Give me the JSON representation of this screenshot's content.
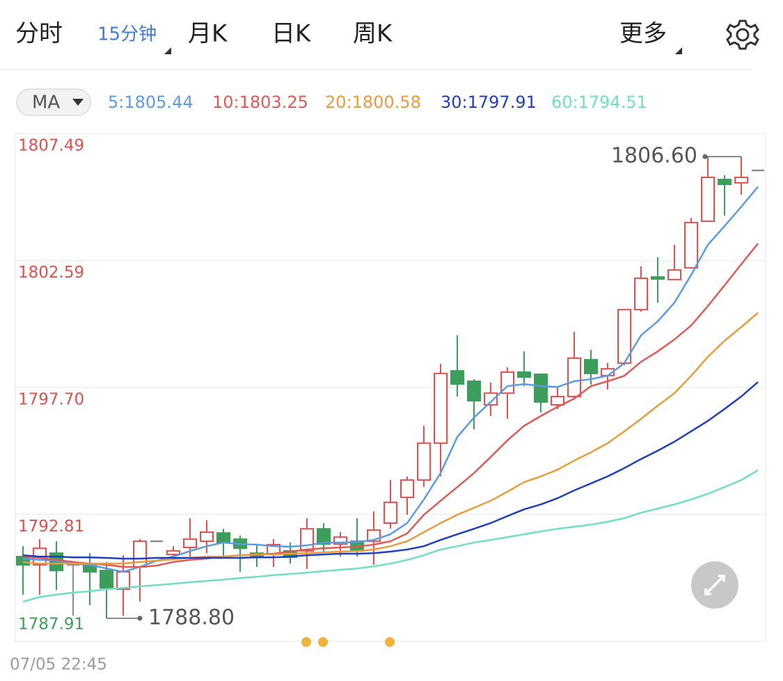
{
  "tabs": [
    "分时",
    "15分钟",
    "月K",
    "日K",
    "周K",
    "更多"
  ],
  "active_tab": 1,
  "indicator": "MA",
  "chart_data": {
    "type": "candlestick",
    "ylim": [
      1787.91,
      1807.49
    ],
    "yticks": [
      1807.49,
      1802.59,
      {
        "value": 1797.7,
        "label": "1797.70"
      },
      1792.81,
      1787.91
    ],
    "ytick_colors": [
      "#d9534f",
      "#d9534f",
      "#d9534f",
      "#d9534f",
      "#3d9e5c"
    ],
    "grid": true,
    "x_start_label": "07/05 22:45",
    "up_color": "#e0514f",
    "down_color": "#3d9e5c",
    "flat_color": "#8a8f99",
    "candles": {
      "open": [
        1791.18,
        1790.86,
        1791.31,
        1790.86,
        1790.83,
        1790.64,
        1789.92,
        1790.78,
        1791.77,
        1791.26,
        1791.53,
        1791.77,
        1792.09,
        1791.85,
        1791.31,
        1791.26,
        1791.4,
        1791.4,
        1792.25,
        1791.66,
        1791.77,
        1791.77,
        1792.47,
        1793.46,
        1794.13,
        1795.55,
        1798.34,
        1797.94,
        1797.03,
        1797.48,
        1798.29,
        1798.21,
        1797.03,
        1797.35,
        1798.77,
        1798.16,
        1798.64,
        1800.7,
        1801.96,
        1801.86,
        1802.31,
        1804.11,
        1805.72,
        1805.59,
        1806.07
      ],
      "high": [
        1791.58,
        1791.85,
        1791.77,
        1790.86,
        1791.31,
        1790.97,
        1791.23,
        1791.85,
        1791.77,
        1791.58,
        1792.66,
        1792.58,
        1792.25,
        1791.99,
        1791.66,
        1791.85,
        1791.72,
        1792.66,
        1792.47,
        1792.12,
        1792.66,
        1792.92,
        1794.13,
        1794.27,
        1796.22,
        1798.61,
        1799.71,
        1798.02,
        1797.89,
        1798.48,
        1799.09,
        1798.21,
        1797.75,
        1799.85,
        1799.15,
        1798.64,
        1800.7,
        1802.37,
        1802.72,
        1803.2,
        1804.24,
        1806.6,
        1805.88,
        1806.6,
        1806.07
      ],
      "low": [
        1789.71,
        1789.71,
        1789.89,
        1788.9,
        1789.3,
        1788.8,
        1788.9,
        1789.44,
        1791.77,
        1791.05,
        1791.18,
        1791.31,
        1791.13,
        1790.59,
        1790.78,
        1790.78,
        1790.91,
        1790.7,
        1791.31,
        1791.18,
        1791.18,
        1790.86,
        1792.25,
        1792.79,
        1793.86,
        1794.27,
        1797.35,
        1796.09,
        1796.6,
        1796.49,
        1797.75,
        1796.73,
        1796.87,
        1797.3,
        1797.81,
        1797.62,
        1798.56,
        1800.62,
        1800.97,
        1801.86,
        1802.31,
        1804.11,
        1804.33,
        1805.13,
        1806.07
      ],
      "close": [
        1790.86,
        1791.5,
        1790.64,
        1790.86,
        1790.59,
        1789.97,
        1790.59,
        1791.77,
        1791.77,
        1791.4,
        1791.85,
        1792.12,
        1791.72,
        1791.5,
        1791.18,
        1791.64,
        1791.15,
        1792.25,
        1791.66,
        1791.93,
        1791.4,
        1792.2,
        1793.27,
        1794.13,
        1795.55,
        1798.24,
        1797.83,
        1797.19,
        1797.48,
        1798.29,
        1798.1,
        1797.14,
        1797.35,
        1798.83,
        1798.24,
        1798.42,
        1800.7,
        1801.91,
        1801.88,
        1802.23,
        1804.06,
        1805.8,
        1805.53,
        1805.8,
        1806.07
      ]
    },
    "series": [
      {
        "name": "5:1805.44",
        "color": "#5b9be6",
        "values": [
          1791.1,
          1791.05,
          1791.02,
          1790.91,
          1790.86,
          1790.72,
          1790.59,
          1790.78,
          1791.02,
          1791.18,
          1791.39,
          1791.58,
          1791.72,
          1791.66,
          1791.64,
          1791.58,
          1791.56,
          1791.61,
          1791.72,
          1791.72,
          1791.74,
          1791.82,
          1792.04,
          1792.47,
          1793.38,
          1794.4,
          1795.79,
          1796.54,
          1797.14,
          1797.75,
          1797.83,
          1797.75,
          1797.72,
          1797.94,
          1798.02,
          1798.15,
          1798.64,
          1799.71,
          1800.25,
          1800.97,
          1802.04,
          1803.2,
          1803.92,
          1804.67,
          1805.44
        ]
      },
      {
        "name": "10:1803.25",
        "color": "#e05a55",
        "values": [
          1791.18,
          1791.13,
          1791.05,
          1790.97,
          1790.91,
          1790.86,
          1790.78,
          1790.78,
          1790.83,
          1790.97,
          1791.05,
          1791.1,
          1791.18,
          1791.23,
          1791.26,
          1791.29,
          1791.37,
          1791.45,
          1791.5,
          1791.53,
          1791.56,
          1791.64,
          1791.77,
          1792.07,
          1792.79,
          1793.33,
          1793.86,
          1794.4,
          1795.02,
          1795.66,
          1796.22,
          1796.6,
          1796.95,
          1797.27,
          1797.75,
          1797.94,
          1798.15,
          1798.69,
          1799.09,
          1799.55,
          1800.09,
          1800.84,
          1801.64,
          1802.45,
          1803.25
        ]
      },
      {
        "name": "20:1800.58",
        "color": "#eb9a3c",
        "values": [
          1790.97,
          1790.91,
          1790.91,
          1790.91,
          1790.91,
          1790.91,
          1790.91,
          1790.97,
          1791.02,
          1791.07,
          1791.13,
          1791.18,
          1791.18,
          1791.23,
          1791.26,
          1791.26,
          1791.29,
          1791.31,
          1791.34,
          1791.37,
          1791.39,
          1791.45,
          1791.58,
          1791.77,
          1792.12,
          1792.47,
          1792.79,
          1793.06,
          1793.33,
          1793.68,
          1794.05,
          1794.27,
          1794.53,
          1794.88,
          1795.2,
          1795.55,
          1796.01,
          1796.49,
          1797.0,
          1797.48,
          1798.15,
          1798.88,
          1799.5,
          1800.03,
          1800.58
        ]
      },
      {
        "name": "30:1797.91",
        "color": "#1f3fbf",
        "values": [
          1791.23,
          1791.18,
          1791.18,
          1791.15,
          1791.15,
          1791.13,
          1791.1,
          1791.1,
          1791.13,
          1791.13,
          1791.13,
          1791.13,
          1791.13,
          1791.13,
          1791.15,
          1791.15,
          1791.18,
          1791.23,
          1791.26,
          1791.29,
          1791.29,
          1791.31,
          1791.37,
          1791.45,
          1791.58,
          1791.82,
          1792.04,
          1792.25,
          1792.47,
          1792.74,
          1793.0,
          1793.19,
          1793.43,
          1793.73,
          1794.0,
          1794.27,
          1794.59,
          1794.94,
          1795.26,
          1795.61,
          1796.01,
          1796.41,
          1796.87,
          1797.35,
          1797.91
        ]
      },
      {
        "name": "60:1794.51",
        "color": "#6ee0c2",
        "values": [
          1789.44,
          1789.62,
          1789.71,
          1789.79,
          1789.84,
          1789.92,
          1789.97,
          1790.03,
          1790.08,
          1790.13,
          1790.19,
          1790.24,
          1790.29,
          1790.35,
          1790.4,
          1790.46,
          1790.51,
          1790.56,
          1790.62,
          1790.67,
          1790.72,
          1790.8,
          1790.91,
          1791.05,
          1791.23,
          1791.45,
          1791.58,
          1791.72,
          1791.82,
          1791.93,
          1792.04,
          1792.15,
          1792.25,
          1792.33,
          1792.41,
          1792.52,
          1792.66,
          1792.87,
          1793.03,
          1793.19,
          1793.38,
          1793.6,
          1793.86,
          1794.13,
          1794.51
        ]
      }
    ],
    "high_marker": {
      "value": 1806.6,
      "label": "1806.60"
    },
    "low_marker": {
      "value": 1788.8,
      "label": "1788.80"
    }
  }
}
